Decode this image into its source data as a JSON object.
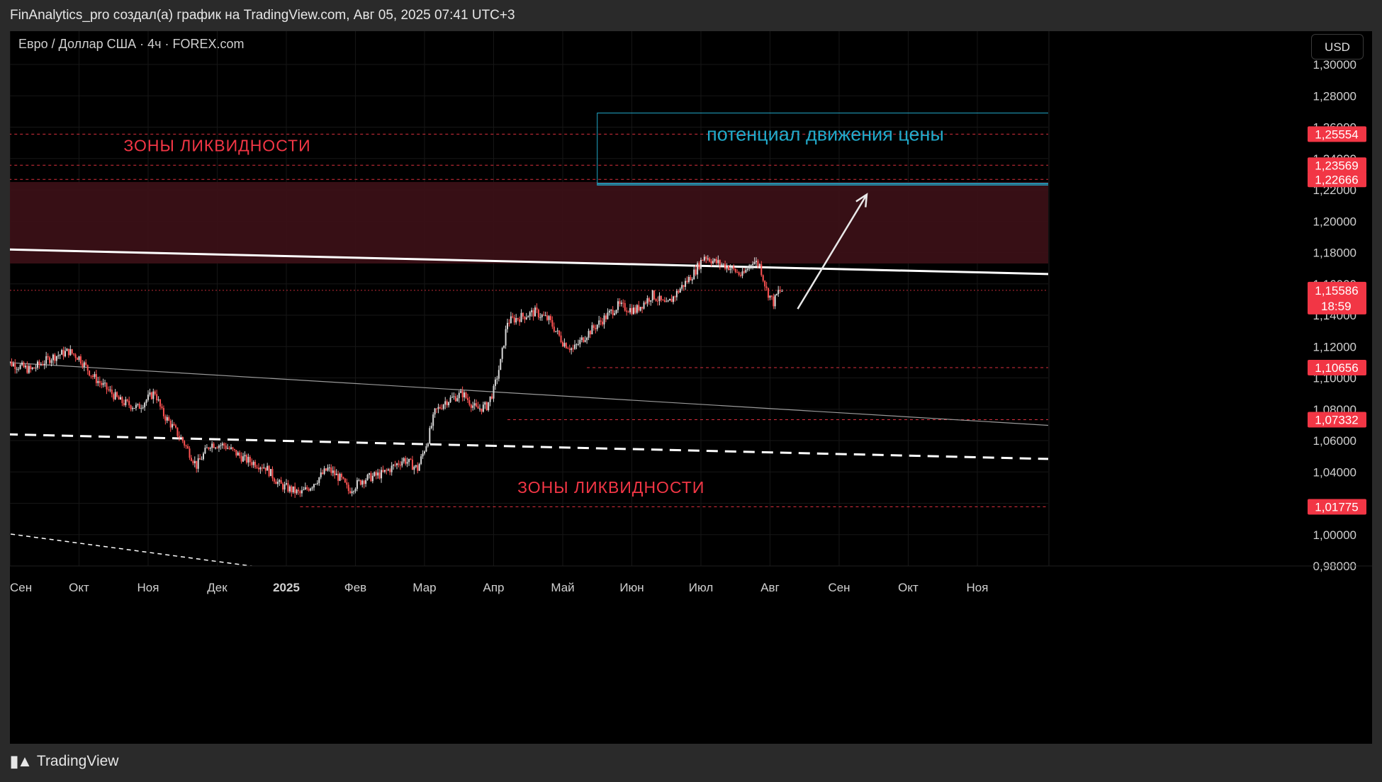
{
  "header": {
    "attribution": "FinAnalytics_pro создал(а) график на TradingView.com, Авг 05, 2025 07:41 UTC+3"
  },
  "chart_header": {
    "symbol_line": "Евро / Доллар США · 4ч · FOREX.com",
    "currency": "USD"
  },
  "footer": {
    "brand": "TradingView"
  },
  "colors": {
    "background": "#000000",
    "up_candle": "#d9d9d9",
    "down_candle": "#ff5252",
    "zone_fill": "#3a1016",
    "label_red": "#f23645",
    "box_teal": "#22a9c9"
  },
  "chart_data": {
    "type": "candlestick",
    "ylim": [
      0.97,
      1.31
    ],
    "yticks": [
      {
        "v": 1.3,
        "label": "1,30000"
      },
      {
        "v": 1.28,
        "label": "1,28000"
      },
      {
        "v": 1.26,
        "label": "1,26000"
      },
      {
        "v": 1.24,
        "label": "1,24000"
      },
      {
        "v": 1.22,
        "label": "1,22000"
      },
      {
        "v": 1.2,
        "label": "1,20000"
      },
      {
        "v": 1.18,
        "label": "1,18000"
      },
      {
        "v": 1.16,
        "label": "1,16000"
      },
      {
        "v": 1.14,
        "label": "1,14000"
      },
      {
        "v": 1.12,
        "label": "1,12000"
      },
      {
        "v": 1.1,
        "label": "1,10000"
      },
      {
        "v": 1.08,
        "label": "1,08000"
      },
      {
        "v": 1.06,
        "label": "1,06000"
      },
      {
        "v": 1.04,
        "label": "1,04000"
      },
      {
        "v": 1.02,
        "label": "1,02000"
      },
      {
        "v": 1.0,
        "label": "1,00000"
      },
      {
        "v": 0.98,
        "label": "0,98000"
      }
    ],
    "xticks": [
      {
        "t": 0.0,
        "label": "Сен",
        "bold": false
      },
      {
        "t": 1.0,
        "label": "Окт",
        "bold": false
      },
      {
        "t": 2.0,
        "label": "Ноя",
        "bold": false
      },
      {
        "t": 3.0,
        "label": "Дек",
        "bold": false
      },
      {
        "t": 4.0,
        "label": "2025",
        "bold": true
      },
      {
        "t": 5.0,
        "label": "Фев",
        "bold": false
      },
      {
        "t": 6.0,
        "label": "Мар",
        "bold": false
      },
      {
        "t": 7.0,
        "label": "Апр",
        "bold": false
      },
      {
        "t": 8.0,
        "label": "Май",
        "bold": false
      },
      {
        "t": 9.0,
        "label": "Июн",
        "bold": false
      },
      {
        "t": 10.0,
        "label": "Июл",
        "bold": false
      },
      {
        "t": 11.0,
        "label": "Авг",
        "bold": false
      },
      {
        "t": 12.0,
        "label": "Сен",
        "bold": false
      },
      {
        "t": 13.0,
        "label": "Окт",
        "bold": false
      },
      {
        "t": 14.0,
        "label": "Ноя",
        "bold": false
      }
    ],
    "price_path": [
      [
        -0.1,
        1.111
      ],
      [
        0.3,
        1.105
      ],
      [
        0.6,
        1.113
      ],
      [
        0.85,
        1.117
      ],
      [
        1.0,
        1.113
      ],
      [
        1.2,
        1.101
      ],
      [
        1.6,
        1.085
      ],
      [
        1.85,
        1.081
      ],
      [
        2.1,
        1.091
      ],
      [
        2.2,
        1.078
      ],
      [
        2.5,
        1.06
      ],
      [
        2.7,
        1.044
      ],
      [
        2.9,
        1.058
      ],
      [
        3.1,
        1.057
      ],
      [
        3.4,
        1.048
      ],
      [
        3.7,
        1.043
      ],
      [
        3.9,
        1.032
      ],
      [
        4.2,
        1.026
      ],
      [
        4.35,
        1.031
      ],
      [
        4.6,
        1.042
      ],
      [
        4.8,
        1.035
      ],
      [
        4.9,
        1.028
      ],
      [
        5.1,
        1.035
      ],
      [
        5.4,
        1.039
      ],
      [
        5.7,
        1.048
      ],
      [
        5.9,
        1.042
      ],
      [
        6.05,
        1.061
      ],
      [
        6.15,
        1.078
      ],
      [
        6.3,
        1.085
      ],
      [
        6.55,
        1.09
      ],
      [
        6.75,
        1.08
      ],
      [
        6.9,
        1.082
      ],
      [
        7.0,
        1.092
      ],
      [
        7.1,
        1.11
      ],
      [
        7.2,
        1.136
      ],
      [
        7.4,
        1.139
      ],
      [
        7.6,
        1.142
      ],
      [
        7.8,
        1.137
      ],
      [
        8.0,
        1.123
      ],
      [
        8.15,
        1.118
      ],
      [
        8.35,
        1.128
      ],
      [
        8.6,
        1.138
      ],
      [
        8.8,
        1.146
      ],
      [
        9.05,
        1.143
      ],
      [
        9.3,
        1.153
      ],
      [
        9.5,
        1.146
      ],
      [
        9.7,
        1.157
      ],
      [
        9.9,
        1.167
      ],
      [
        10.05,
        1.178
      ],
      [
        10.2,
        1.174
      ],
      [
        10.4,
        1.171
      ],
      [
        10.6,
        1.165
      ],
      [
        10.75,
        1.175
      ],
      [
        10.85,
        1.172
      ],
      [
        10.95,
        1.156
      ],
      [
        11.05,
        1.148
      ],
      [
        11.12,
        1.155
      ],
      [
        11.2,
        1.156
      ]
    ],
    "levels": [
      {
        "price": 1.25554,
        "label": "1,25554",
        "x_from": -0.1
      },
      {
        "price": 1.23569,
        "label": "1,23569",
        "x_from": -0.1
      },
      {
        "price": 1.22666,
        "label": "1,22666",
        "x_from": -0.1
      },
      {
        "price": 1.10656,
        "label": "1,10656",
        "x_from": 8.35
      },
      {
        "price": 1.07332,
        "label": "1,07332",
        "x_from": 7.2
      },
      {
        "price": 1.01775,
        "label": "1,01775",
        "x_from": 4.2
      }
    ],
    "current": {
      "price": 1.15586,
      "label": "1,15586",
      "countdown": "18:59"
    },
    "zone": {
      "top": 1.225,
      "bottom": 1.173
    },
    "trendlines": [
      {
        "kind": "solid-thick",
        "color": "#ffffff",
        "from": [
          -0.1,
          1.182
        ],
        "to": [
          15.3,
          1.166
        ]
      },
      {
        "kind": "solid-thin",
        "color": "#9a9a9a",
        "from": [
          -0.1,
          1.11
        ],
        "to": [
          15.3,
          1.069
        ]
      },
      {
        "kind": "dashed-thick",
        "color": "#ffffff",
        "from": [
          -0.05,
          1.064
        ],
        "to": [
          15.3,
          1.048
        ]
      },
      {
        "kind": "dashed-thin",
        "color": "#ffffff",
        "from": [
          -0.1,
          1.001
        ],
        "to": [
          4.0,
          0.977
        ]
      }
    ],
    "arrow": {
      "from": [
        11.4,
        1.144
      ],
      "to": [
        12.4,
        1.217
      ]
    },
    "box": {
      "x0": 8.5,
      "x1": 15.1,
      "top": 1.269,
      "bottom": 1.223,
      "label": "потенциал движения цены"
    },
    "annotations": [
      {
        "text": "ЗОНЫ ЛИКВИДНОСТИ",
        "x": 3.0,
        "price": 1.2446
      },
      {
        "text": "ЗОНЫ ЛИКВИДНОСТИ",
        "x": 8.7,
        "price": 1.0265
      }
    ]
  }
}
